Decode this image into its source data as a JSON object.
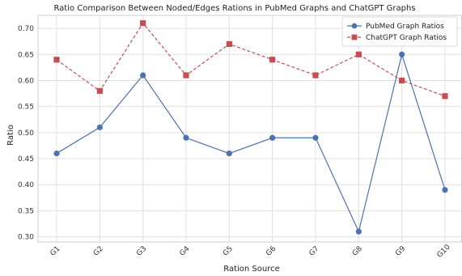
{
  "chart_data": {
    "type": "line",
    "title": "Ratio Comparison Between Noded/Edges Rations in PubMed Graphs and ChatGPT Graphs",
    "xlabel": "Ration Source",
    "ylabel": "Ratio",
    "categories": [
      "G1",
      "G2",
      "G3",
      "G4",
      "G5",
      "G6",
      "G7",
      "G8",
      "G9",
      "G10"
    ],
    "ylim": [
      0.29,
      0.725
    ],
    "yticks": [
      0.3,
      0.35,
      0.4,
      0.45,
      0.5,
      0.55,
      0.6,
      0.65,
      0.7
    ],
    "ytick_labels": [
      "0.30",
      "0.35",
      "0.40",
      "0.45",
      "0.50",
      "0.55",
      "0.60",
      "0.65",
      "0.70"
    ],
    "grid": true,
    "legend_position": "top-right",
    "series": [
      {
        "name": "PubMed Graph Ratios",
        "values": [
          0.46,
          0.51,
          0.61,
          0.49,
          0.46,
          0.49,
          0.49,
          0.31,
          0.65,
          0.39
        ],
        "color": "#4c72b0",
        "marker": "circle",
        "linestyle": "solid"
      },
      {
        "name": "ChatGPT Graph Ratios",
        "values": [
          0.64,
          0.58,
          0.71,
          0.61,
          0.67,
          0.64,
          0.61,
          0.65,
          0.6,
          0.57
        ],
        "color": "#c44e52",
        "marker": "square",
        "linestyle": "dashed"
      }
    ]
  }
}
